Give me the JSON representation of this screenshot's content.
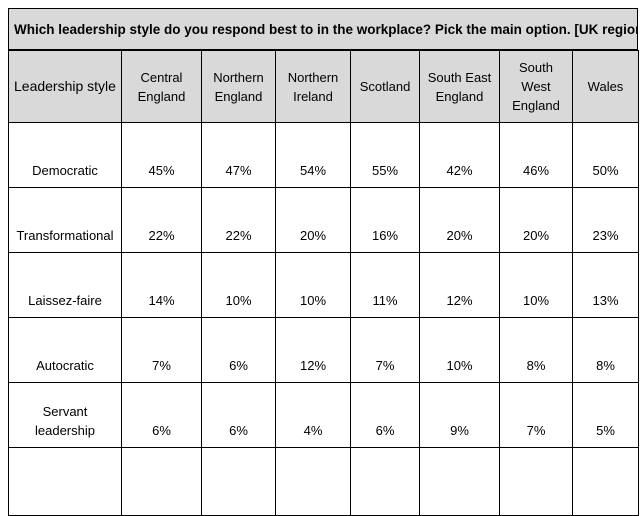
{
  "title": "Which leadership style do you respond best to in the workplace? Pick the main option. [UK regions]",
  "columns": [
    "Leadership style",
    "Central England",
    "Northern England",
    "Northern Ireland",
    "Scotland",
    "South East England",
    "South West England",
    "Wales"
  ],
  "rows": [
    {
      "label": "Democratic",
      "values": [
        "45%",
        "47%",
        "54%",
        "55%",
        "42%",
        "46%",
        "50%"
      ]
    },
    {
      "label": "Transformational",
      "values": [
        "22%",
        "22%",
        "20%",
        "16%",
        "20%",
        "20%",
        "23%"
      ]
    },
    {
      "label": "Laissez-faire",
      "values": [
        "14%",
        "10%",
        "10%",
        "11%",
        "12%",
        "10%",
        "13%"
      ]
    },
    {
      "label": "Autocratic",
      "values": [
        "7%",
        "6%",
        "12%",
        "7%",
        "10%",
        "8%",
        "8%"
      ]
    },
    {
      "label": "Servant leadership",
      "values": [
        "6%",
        "6%",
        "4%",
        "6%",
        "9%",
        "7%",
        "5%"
      ]
    }
  ],
  "colors": {
    "header_background": "#d9d9d9",
    "border": "#000000"
  }
}
